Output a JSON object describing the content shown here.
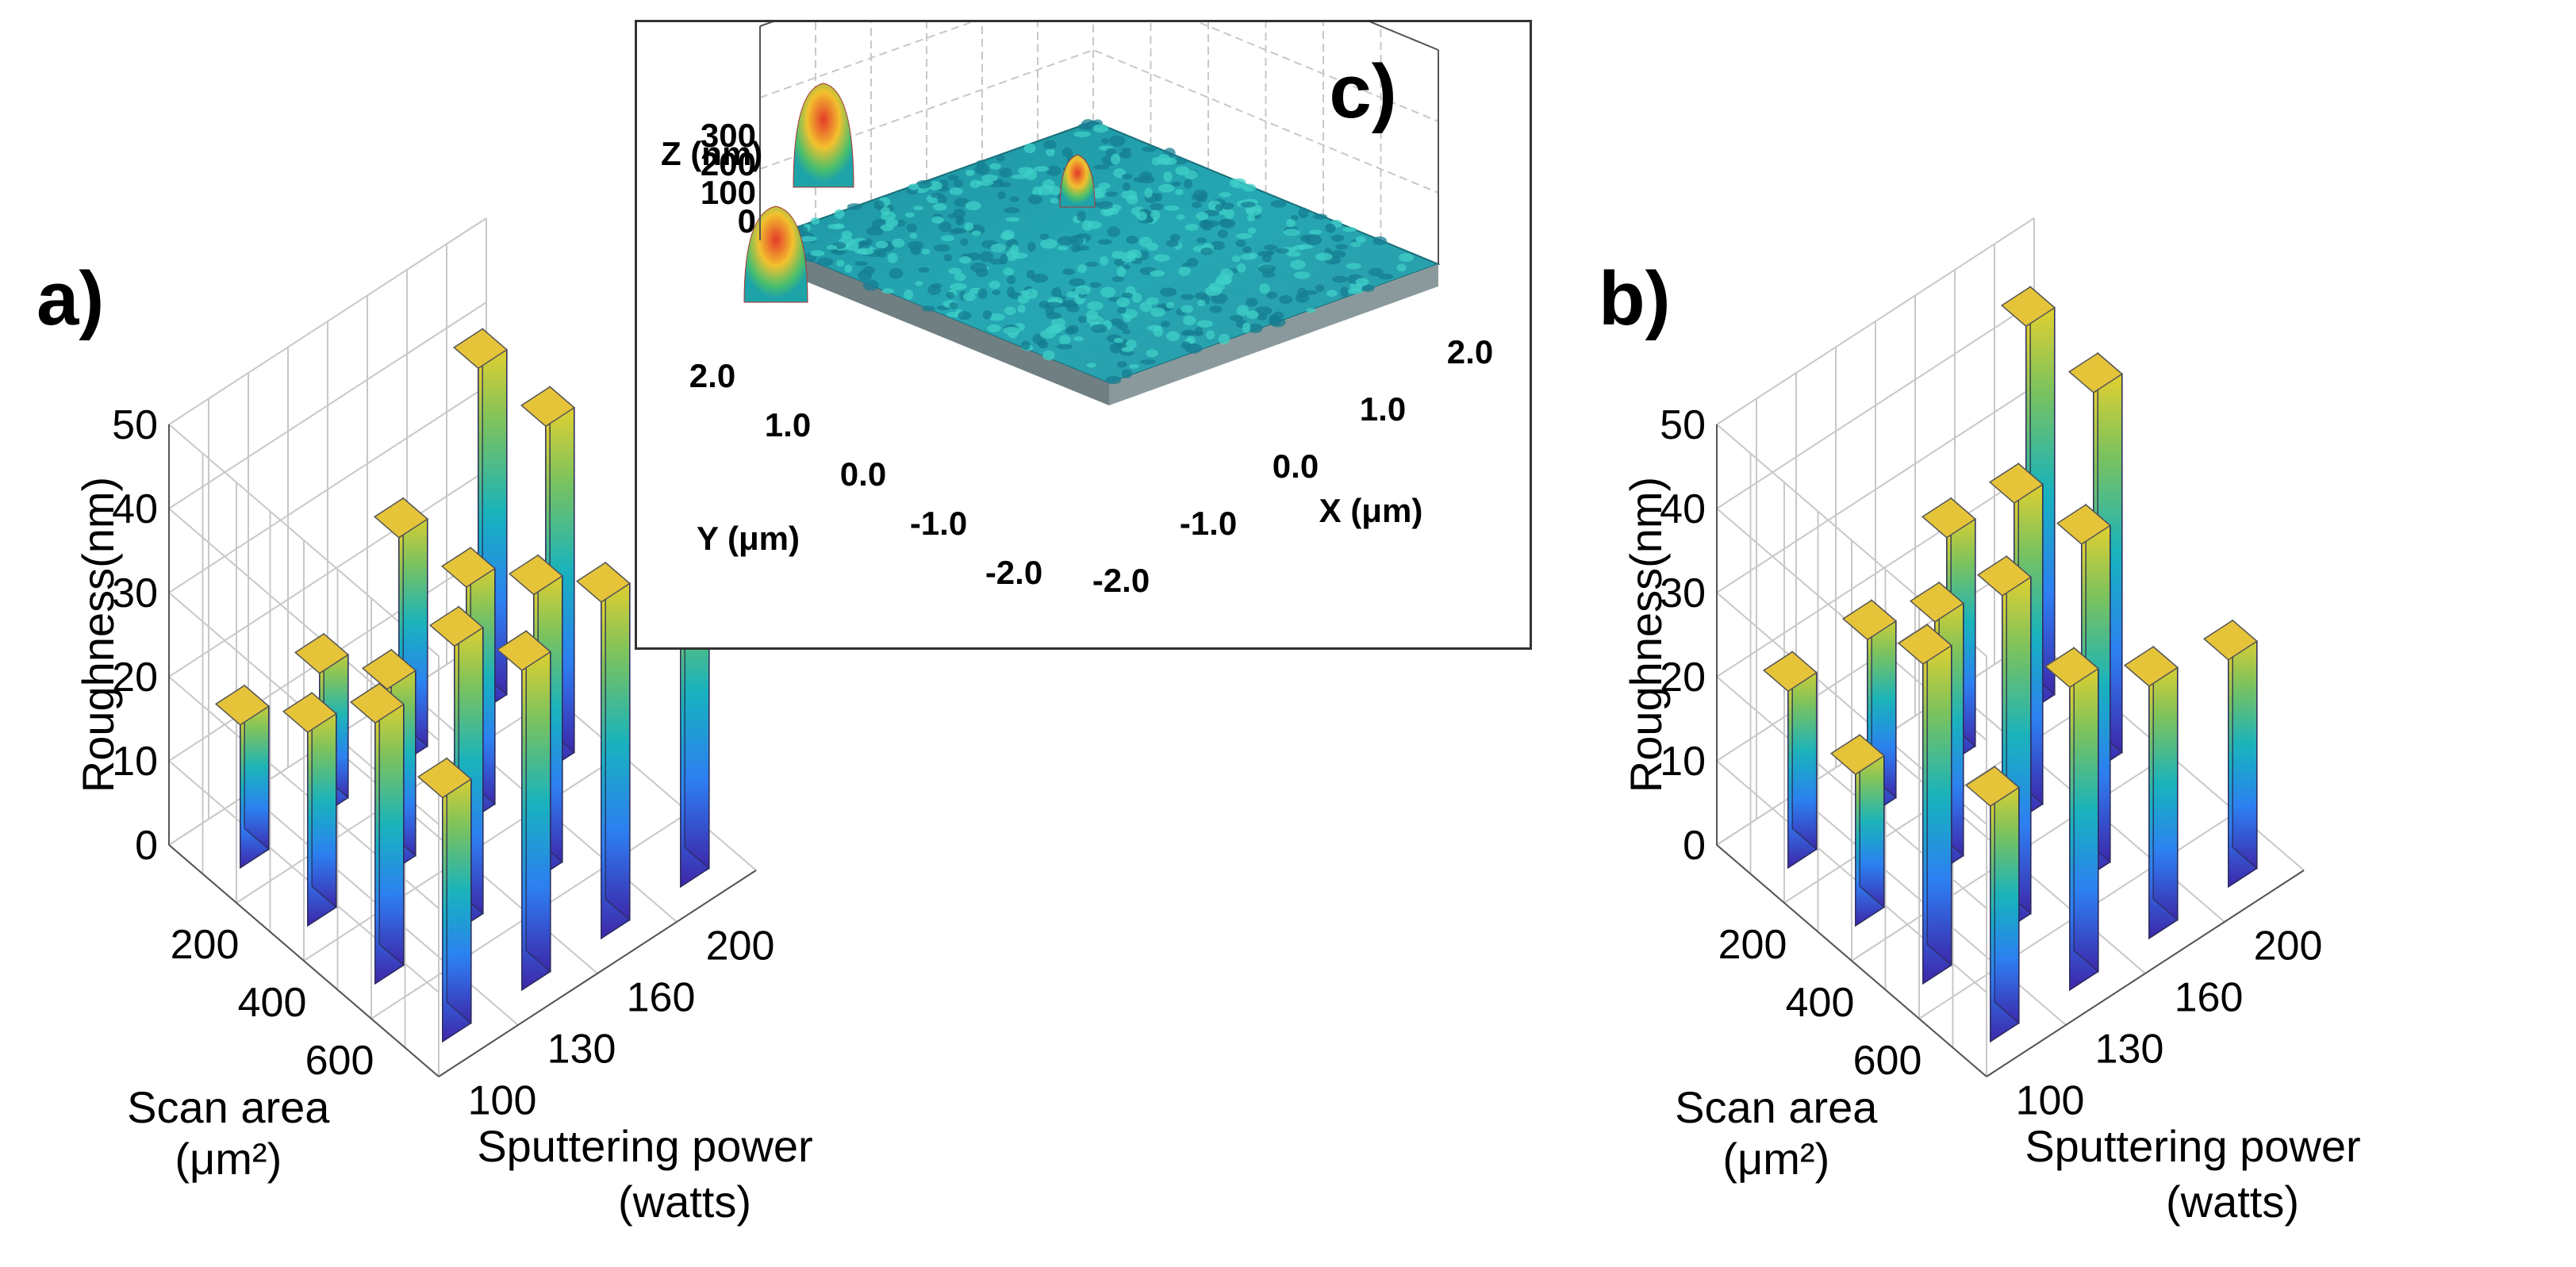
{
  "chart_data": [
    {
      "panel_label": "a)",
      "type": "bar3d",
      "zlabel": "Roughness(nm)",
      "zlim": [
        0,
        50
      ],
      "z_ticks": [
        "0",
        "10",
        "20",
        "30",
        "40",
        "50"
      ],
      "scan_area": {
        "label_line1": "Scan area",
        "label_line2": "(μm²)",
        "ticks": [
          "200",
          "400",
          "600"
        ]
      },
      "sputtering_power": {
        "label_line1": "Sputtering power",
        "label_line2": "(watts)",
        "ticks": [
          "100",
          "130",
          "160",
          "200"
        ]
      },
      "scan_area_values": [
        100,
        200,
        400,
        600
      ],
      "power_values": [
        100,
        130,
        160,
        200
      ],
      "series": [
        {
          "scan_area": 100,
          "values": [
            17,
            17,
            27,
            41
          ]
        },
        {
          "scan_area": 200,
          "values": [
            23,
            22,
            28,
            41
          ]
        },
        {
          "scan_area": 400,
          "values": [
            31,
            34,
            34,
            0
          ]
        },
        {
          "scan_area": 600,
          "values": [
            29,
            38,
            40,
            40
          ]
        }
      ]
    },
    {
      "panel_label": "b)",
      "type": "bar3d",
      "zlabel": "Roughness(nm)",
      "zlim": [
        0,
        50
      ],
      "z_ticks": [
        "0",
        "10",
        "20",
        "30",
        "40",
        "50"
      ],
      "scan_area": {
        "label_line1": "Scan area",
        "label_line2": "(μm²)",
        "ticks": [
          "200",
          "400",
          "600"
        ]
      },
      "sputtering_power": {
        "label_line1": "Sputtering power",
        "label_line2": "(watts)",
        "ticks": [
          "100",
          "130",
          "160",
          "200"
        ]
      },
      "scan_area_values": [
        100,
        200,
        400,
        600
      ],
      "power_values": [
        100,
        130,
        160,
        200
      ],
      "series": [
        {
          "scan_area": 100,
          "values": [
            21,
            21,
            27,
            46
          ]
        },
        {
          "scan_area": 200,
          "values": [
            18,
            30,
            38,
            45
          ]
        },
        {
          "scan_area": 400,
          "values": [
            38,
            40,
            40,
            0
          ]
        },
        {
          "scan_area": 600,
          "values": [
            28,
            36,
            30,
            27
          ]
        }
      ]
    }
  ],
  "inset": {
    "panel_label": "c)",
    "type": "surface3d",
    "z_axis_label": "Z (nm)",
    "z_ticks": [
      "300",
      "200",
      "100",
      "0"
    ],
    "y_axis_label": "Y (μm)",
    "y_ticks": [
      "2.0",
      "1.0",
      "0.0",
      "-1.0",
      "-2.0"
    ],
    "x_axis_label": "X (μm)",
    "x_ticks": [
      "2.0",
      "1.0",
      "0.0",
      "-1.0",
      "-2.0"
    ]
  }
}
